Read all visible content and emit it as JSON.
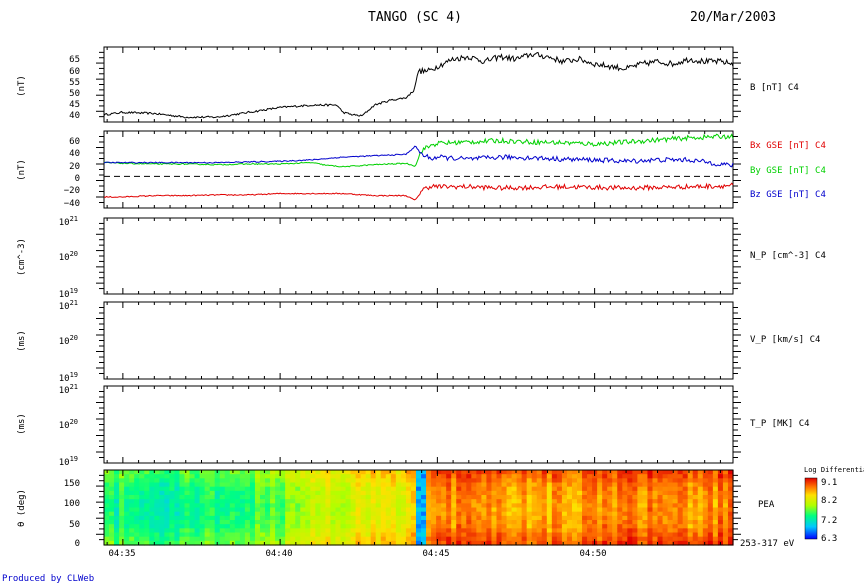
{
  "header": {
    "title": "TANGO (SC 4)",
    "date": "20/Mar/2003"
  },
  "footer": {
    "credit": "Produced by CLWeb"
  },
  "time_axis": {
    "ticks": [
      "04:35",
      "04:40",
      "04:45",
      "04:50"
    ],
    "tick_minutes": [
      35,
      40,
      45,
      50
    ],
    "range_minutes": [
      34.4,
      54.4
    ]
  },
  "panels": {
    "b": {
      "ylabel": "(nT)",
      "right_label": "B [nT] C4",
      "ticks": [
        "65",
        "60",
        "55",
        "50",
        "45",
        "40"
      ],
      "tick_values": [
        65,
        60,
        55,
        50,
        45,
        40
      ],
      "ylim": [
        37,
        68
      ]
    },
    "bxyz": {
      "ylabel": "(nT)",
      "ticks": [
        "60",
        "40",
        "20",
        "0",
        "−20",
        "−40"
      ],
      "tick_values": [
        60,
        40,
        20,
        0,
        -20,
        -40
      ],
      "ylim": [
        -46,
        66
      ],
      "labels": [
        "Bx GSE [nT] C4",
        "By GSE [nT] C4",
        "Bz GSE [nT] C4"
      ],
      "colors": [
        "#e00000",
        "#00d000",
        "#0000cc"
      ]
    },
    "np": {
      "ylabel": "(cm^-3)",
      "right_label": "N_P [cm^-3] C4",
      "ticks": [
        {
          "base": "10",
          "exp": "21"
        },
        {
          "base": "10",
          "exp": "20"
        },
        {
          "base": "10",
          "exp": "19"
        }
      ]
    },
    "vp": {
      "ylabel": "(ms)",
      "right_label": "V_P [km/s] C4",
      "ticks": [
        {
          "base": "10",
          "exp": "21"
        },
        {
          "base": "10",
          "exp": "20"
        },
        {
          "base": "10",
          "exp": "19"
        }
      ]
    },
    "tp": {
      "ylabel": "(ms)",
      "right_label": "T_P [MK] C4",
      "ticks": [
        {
          "base": "10",
          "exp": "21"
        },
        {
          "base": "10",
          "exp": "20"
        },
        {
          "base": "10",
          "exp": "19"
        }
      ]
    },
    "pea": {
      "ylabel": "θ (deg)",
      "right_label": "PEA",
      "energy_label": "253-317 eV",
      "ticks": [
        "150",
        "100",
        "50",
        "0"
      ],
      "tick_values": [
        150,
        100,
        50,
        0
      ],
      "ylim": [
        0,
        180
      ],
      "colorbar": {
        "title": "Log Differential",
        "ticks": [
          "9.1",
          "8.2",
          "7.2",
          "6.3"
        ],
        "tick_values": [
          9.1,
          8.2,
          7.2,
          6.3
        ]
      }
    }
  },
  "chart_data": [
    {
      "type": "line",
      "xlabel": "",
      "ylabel": "(nT)",
      "ylim": [
        37,
        68
      ],
      "series": [
        {
          "name": "B [nT] C4",
          "color": "#000000",
          "x": [
            34.4,
            35.0,
            36.0,
            37.0,
            38.0,
            39.0,
            40.0,
            41.0,
            41.8,
            42.0,
            42.3,
            42.6,
            43.0,
            43.5,
            44.0,
            44.25,
            44.4,
            44.7,
            45.0,
            45.5,
            46.0,
            46.5,
            47.0,
            47.5,
            48.0,
            48.5,
            49.0,
            49.5,
            50.0,
            50.5,
            51.0,
            51.5,
            52.0,
            52.5,
            53.0,
            53.5,
            54.0,
            54.4
          ],
          "y": [
            40,
            41,
            40.5,
            39,
            39,
            41,
            43,
            44,
            44,
            41,
            40,
            39.5,
            44,
            46,
            47,
            50,
            58,
            58,
            60,
            63,
            64,
            62,
            64,
            63,
            65,
            64,
            62,
            63,
            61,
            60,
            59,
            61,
            62,
            61,
            63,
            62,
            62,
            61
          ]
        }
      ]
    },
    {
      "type": "line",
      "xlabel": "",
      "ylabel": "(nT)",
      "ylim": [
        -46,
        66
      ],
      "series": [
        {
          "name": "Bx GSE [nT] C4",
          "color": "#e00000",
          "x": [
            34.4,
            35.0,
            36.0,
            37.0,
            38.0,
            39.0,
            40.0,
            41.0,
            42.0,
            43.0,
            44.0,
            44.3,
            44.5,
            44.8,
            45.0,
            46.0,
            47.0,
            48.0,
            49.0,
            50.0,
            51.0,
            52.0,
            53.0,
            54.0,
            54.4
          ],
          "y": [
            -30,
            -30,
            -28,
            -28,
            -27,
            -27,
            -25,
            -25,
            -25,
            -28,
            -28,
            -35,
            -20,
            -14,
            -15,
            -15,
            -17,
            -16,
            -15,
            -16,
            -17,
            -16,
            -15,
            -14,
            -13
          ]
        },
        {
          "name": "By GSE [nT] C4",
          "color": "#00d000",
          "x": [
            34.4,
            35.0,
            36.0,
            37.0,
            38.0,
            39.0,
            40.0,
            41.0,
            41.5,
            42.0,
            43.0,
            44.0,
            44.3,
            44.5,
            44.8,
            45.0,
            46.0,
            47.0,
            48.0,
            49.0,
            50.0,
            51.0,
            52.0,
            53.0,
            54.0,
            54.4
          ],
          "y": [
            20,
            19,
            18,
            18,
            17,
            18,
            18,
            20,
            16,
            14,
            17,
            19,
            15,
            38,
            45,
            48,
            50,
            52,
            50,
            49,
            47,
            50,
            53,
            56,
            58,
            58
          ]
        },
        {
          "name": "Bz GSE [nT] C4",
          "color": "#0000cc",
          "x": [
            34.4,
            35.0,
            36.0,
            37.0,
            38.0,
            39.0,
            40.0,
            41.0,
            42.0,
            43.0,
            44.0,
            44.3,
            44.5,
            44.8,
            45.0,
            46.0,
            47.0,
            48.0,
            49.0,
            50.0,
            51.0,
            52.0,
            53.0,
            54.0,
            54.4
          ],
          "y": [
            20,
            20,
            20,
            20,
            20,
            21,
            22,
            24,
            28,
            30,
            32,
            44,
            32,
            26,
            28,
            25,
            28,
            27,
            25,
            24,
            22,
            24,
            24,
            18,
            16
          ]
        },
        {
          "name": "",
          "color": "#000000",
          "dashed": true,
          "x": [
            34.4,
            54.4
          ],
          "y": [
            0,
            0
          ]
        }
      ]
    },
    {
      "type": "heatmap",
      "xlabel": "",
      "ylabel": "θ (deg)",
      "ylim": [
        0,
        180
      ],
      "color_range": [
        6.3,
        9.1
      ],
      "x": [
        34.4,
        35.0,
        36.0,
        37.0,
        38.0,
        39.0,
        40.0,
        41.0,
        42.0,
        43.0,
        44.0,
        44.3,
        44.5,
        44.8,
        45.0,
        46.0,
        47.0,
        48.0,
        49.0,
        50.0,
        51.0,
        52.0,
        53.0,
        54.0,
        54.4
      ],
      "theta_profile": {
        "theta": [
          0,
          45,
          90,
          135,
          180
        ],
        "values": [
          7.4,
          7.1,
          7.0,
          7.1,
          7.4
        ]
      }
    }
  ]
}
